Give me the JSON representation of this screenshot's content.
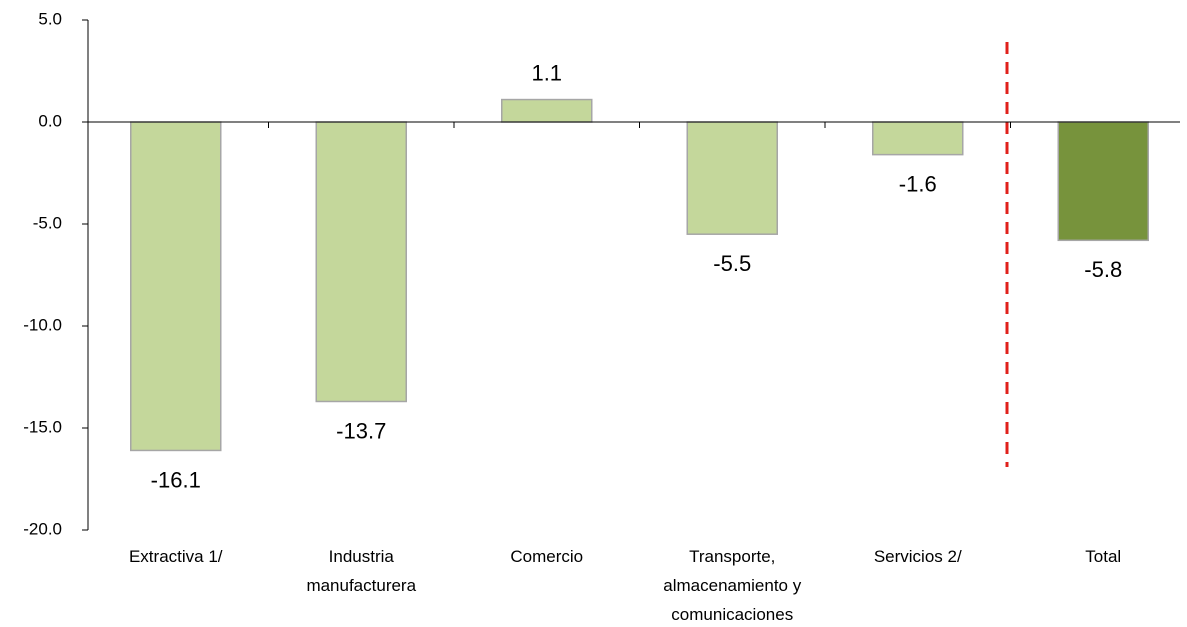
{
  "chart_data": {
    "type": "bar",
    "categories": [
      "Extractiva 1/",
      "Industria manufacturera",
      "Comercio",
      "Transporte, almacenamiento y comunicaciones",
      "Servicios 2/",
      "Total"
    ],
    "values": [
      -16.1,
      -13.7,
      1.1,
      -5.5,
      -1.6,
      -5.8
    ],
    "colors": [
      "#c4d79b",
      "#c4d79b",
      "#c4d79b",
      "#c4d79b",
      "#c4d79b",
      "#77933c"
    ],
    "ylim": [
      -20,
      5
    ],
    "yticks": [
      {
        "value": -20,
        "label": "-20.0"
      },
      {
        "value": -15,
        "label": "-15.0"
      },
      {
        "value": -10,
        "label": "-10.0"
      },
      {
        "value": -5,
        "label": "-5.0"
      },
      {
        "value": 0,
        "label": "0.0"
      },
      {
        "value": 5,
        "label": "5.0"
      }
    ],
    "grid": false
  }
}
